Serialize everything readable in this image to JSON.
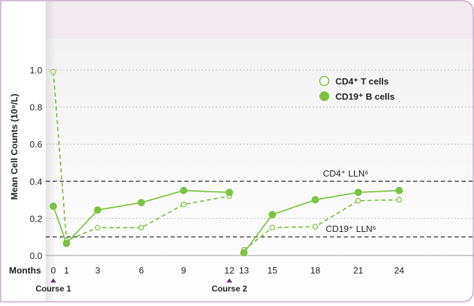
{
  "colors": {
    "accent": "#7dc242",
    "frame_border": "#c9a6c9",
    "header_band": "#f2e9f1",
    "course_marker": "#6b2a74",
    "grid": "#b8b8b8",
    "threshold": "#333333",
    "text": "#222222"
  },
  "chart_data": {
    "type": "line",
    "ylabel": "Mean Cell Counts (10⁹/L)",
    "xlabel_prefix": "Months",
    "ylim": [
      0,
      1.0
    ],
    "y_ticks": [
      0.0,
      0.2,
      0.4,
      0.6,
      0.8,
      1.0
    ],
    "y_tick_labels": [
      "0.0",
      "0.2",
      "0.4",
      "0.6",
      "0.8",
      "1.0"
    ],
    "x_ticks": [
      0,
      1,
      3,
      6,
      9,
      12,
      13,
      15,
      18,
      21,
      24
    ],
    "x_tick_labels": [
      "0",
      "1",
      "3",
      "6",
      "9",
      "12",
      "13",
      "15",
      "18",
      "21",
      "24"
    ],
    "grid": "horizontal dotted",
    "legend_position": "top-right",
    "series": [
      {
        "name": "CD4⁺ T cells",
        "style": "dashed-open",
        "segments": [
          [
            [
              0,
              0.99
            ],
            [
              1,
              0.08
            ],
            [
              3,
              0.15
            ],
            [
              6,
              0.15
            ],
            [
              9,
              0.275
            ],
            [
              12,
              0.32
            ]
          ],
          [
            [
              13,
              0.03
            ],
            [
              15,
              0.15
            ],
            [
              18,
              0.155
            ],
            [
              21,
              0.295
            ],
            [
              24,
              0.3
            ]
          ]
        ]
      },
      {
        "name": "CD19⁺ B cells",
        "style": "solid-filled",
        "segments": [
          [
            [
              0,
              0.265
            ],
            [
              1,
              0.065
            ],
            [
              3,
              0.245
            ],
            [
              6,
              0.285
            ],
            [
              9,
              0.35
            ],
            [
              12,
              0.34
            ]
          ],
          [
            [
              13,
              0.015
            ],
            [
              15,
              0.22
            ],
            [
              18,
              0.3
            ],
            [
              21,
              0.34
            ],
            [
              24,
              0.35
            ]
          ]
        ]
      }
    ],
    "thresholds": [
      {
        "label": "CD4⁺ LLN⁶",
        "value": 0.4
      },
      {
        "label": "CD19⁺ LLN⁶",
        "value": 0.1
      }
    ],
    "course_markers": [
      {
        "label": "Course 1",
        "x": 0
      },
      {
        "label": "Course 2",
        "x": 12
      }
    ]
  }
}
